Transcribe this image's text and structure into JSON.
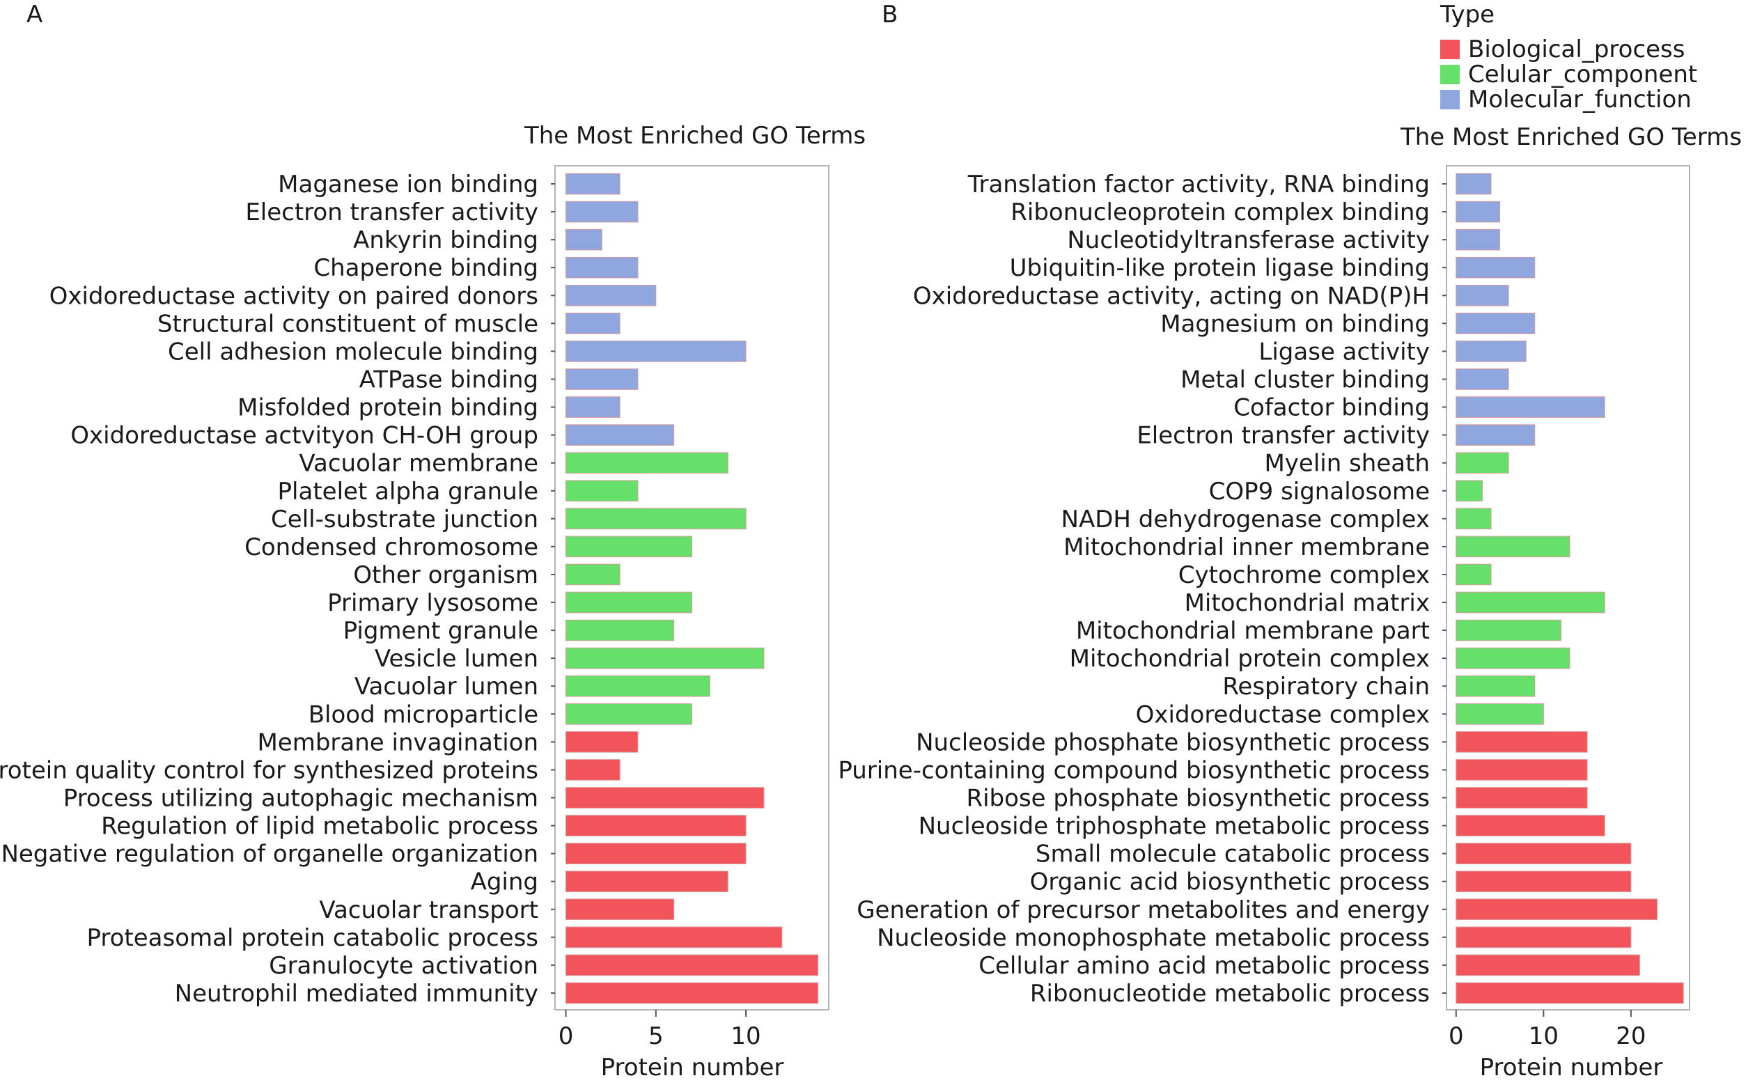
{
  "panel_labels": [
    "A",
    "B"
  ],
  "legend": {
    "title": "Type",
    "entries": [
      {
        "label": "Biological_process",
        "color": "#f2545b"
      },
      {
        "label": "Celular_component",
        "color": "#66e06a"
      },
      {
        "label": "Molecular_function",
        "color": "#8fa6de"
      }
    ]
  },
  "chart_data": [
    {
      "type": "bar",
      "orientation": "horizontal",
      "panel": "A",
      "title": "The Most Enriched GO Terms",
      "xlabel": "Protein number",
      "ylabel": "",
      "xlim": [
        -0.6,
        14.6
      ],
      "xticks": [
        0,
        5,
        10
      ],
      "categories": [
        "Maganese ion binding",
        "Electron transfer activity",
        "Ankyrin binding",
        "Chaperone binding",
        "Oxidoreductase activity on paired donors",
        "Structural constituent of muscle",
        "Cell adhesion molecule binding",
        "ATPase binding",
        "Misfolded protein binding",
        "Oxidoreductase actvityon CH-OH group",
        "Vacuolar membrane",
        "Platelet alpha granule",
        "Cell-substrate junction",
        "Condensed chromosome",
        "Other organism",
        "Primary lysosome",
        "Pigment granule",
        "Vesicle lumen",
        "Vacuolar lumen",
        "Blood microparticle",
        "Membrane invagination",
        "Protein quality control for synthesized proteins",
        "Process utilizing autophagic mechanism",
        "Regulation of lipid metabolic process",
        "Negative regulation of organelle organization",
        "Aging",
        "Vacuolar transport",
        "Proteasomal protein catabolic process",
        "Granulocyte activation",
        "Neutrophil mediated immunity"
      ],
      "values": [
        3,
        4,
        2,
        4,
        5,
        3,
        10,
        4,
        3,
        6,
        9,
        4,
        10,
        7,
        3,
        7,
        6,
        11,
        8,
        7,
        4,
        3,
        11,
        10,
        10,
        9,
        6,
        12,
        14,
        14
      ],
      "types": [
        "Molecular_function",
        "Molecular_function",
        "Molecular_function",
        "Molecular_function",
        "Molecular_function",
        "Molecular_function",
        "Molecular_function",
        "Molecular_function",
        "Molecular_function",
        "Molecular_function",
        "Celular_component",
        "Celular_component",
        "Celular_component",
        "Celular_component",
        "Celular_component",
        "Celular_component",
        "Celular_component",
        "Celular_component",
        "Celular_component",
        "Celular_component",
        "Biological_process",
        "Biological_process",
        "Biological_process",
        "Biological_process",
        "Biological_process",
        "Biological_process",
        "Biological_process",
        "Biological_process",
        "Biological_process",
        "Biological_process"
      ]
    },
    {
      "type": "bar",
      "orientation": "horizontal",
      "panel": "B",
      "title": "The Most Enriched GO Terms",
      "xlabel": "Protein number",
      "ylabel": "",
      "xlim": [
        -1.1,
        26.7
      ],
      "xticks": [
        0,
        10,
        20
      ],
      "categories": [
        "Translation factor activity, RNA binding",
        "Ribonucleoprotein complex binding",
        "Nucleotidyltransferase activity",
        "Ubiquitin-like protein ligase binding",
        "Oxidoreductase activity, acting on NAD(P)H",
        "Magnesium on binding",
        "Ligase activity",
        "Metal cluster binding",
        "Cofactor binding",
        "Electron transfer activity",
        "Myelin sheath",
        "COP9 signalosome",
        "NADH dehydrogenase complex",
        "Mitochondrial inner membrane",
        "Cytochrome complex",
        "Mitochondrial matrix",
        "Mitochondrial membrane part",
        "Mitochondrial protein complex",
        "Respiratory chain",
        "Oxidoreductase complex",
        "Nucleoside phosphate biosynthetic process",
        "Purine-containing compound biosynthetic process",
        "Ribose phosphate biosynthetic process",
        "Nucleoside triphosphate metabolic process",
        "Small molecule catabolic process",
        "Organic acid biosynthetic process",
        "Generation of precursor metabolites and energy",
        "Nucleoside monophosphate metabolic process",
        "Cellular amino acid metabolic process",
        "Ribonucleotide metabolic process"
      ],
      "values": [
        4,
        5,
        5,
        9,
        6,
        9,
        8,
        6,
        17,
        9,
        6,
        3,
        4,
        13,
        4,
        17,
        12,
        13,
        9,
        10,
        15,
        15,
        15,
        17,
        20,
        20,
        23,
        20,
        21,
        26
      ],
      "types": [
        "Molecular_function",
        "Molecular_function",
        "Molecular_function",
        "Molecular_function",
        "Molecular_function",
        "Molecular_function",
        "Molecular_function",
        "Molecular_function",
        "Molecular_function",
        "Molecular_function",
        "Celular_component",
        "Celular_component",
        "Celular_component",
        "Celular_component",
        "Celular_component",
        "Celular_component",
        "Celular_component",
        "Celular_component",
        "Celular_component",
        "Celular_component",
        "Biological_process",
        "Biological_process",
        "Biological_process",
        "Biological_process",
        "Biological_process",
        "Biological_process",
        "Biological_process",
        "Biological_process",
        "Biological_process",
        "Biological_process"
      ]
    }
  ]
}
